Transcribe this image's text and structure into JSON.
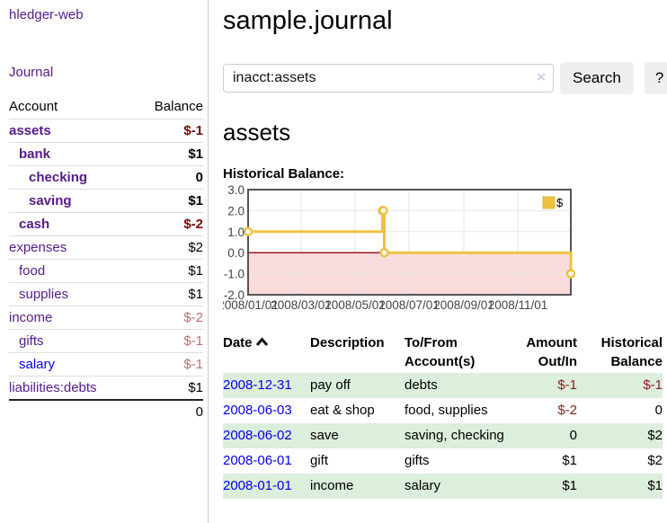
{
  "sidebar": {
    "brand": "hledger-web",
    "journal_link": "Journal",
    "accounts_table": {
      "col_account": "Account",
      "col_balance": "Balance",
      "rows": [
        {
          "label": "assets",
          "balance": "$-1",
          "indent": 1,
          "bold": true,
          "link_color": "purple",
          "balance_color": "darkred"
        },
        {
          "label": "bank",
          "balance": "$1",
          "indent": 2,
          "bold": true,
          "link_color": "purple",
          "balance_color": "black"
        },
        {
          "label": "checking",
          "balance": "0",
          "indent": 3,
          "bold": true,
          "link_color": "purple",
          "balance_color": "black"
        },
        {
          "label": "saving",
          "balance": "$1",
          "indent": 3,
          "bold": true,
          "link_color": "purple",
          "balance_color": "black"
        },
        {
          "label": "cash",
          "balance": "$-2",
          "indent": 2,
          "bold": true,
          "link_color": "purple",
          "balance_color": "darkred"
        },
        {
          "label": "expenses",
          "balance": "$2",
          "indent": 1,
          "bold": false,
          "link_color": "purple",
          "balance_color": "black"
        },
        {
          "label": "food",
          "balance": "$1",
          "indent": 2,
          "bold": false,
          "link_color": "purple",
          "balance_color": "black"
        },
        {
          "label": "supplies",
          "balance": "$1",
          "indent": 2,
          "bold": false,
          "link_color": "purple",
          "balance_color": "black"
        },
        {
          "label": "income",
          "balance": "$-2",
          "indent": 1,
          "bold": false,
          "link_color": "purple",
          "balance_color": "lightred"
        },
        {
          "label": "gifts",
          "balance": "$-1",
          "indent": 2,
          "bold": false,
          "link_color": "purple",
          "balance_color": "lightred"
        },
        {
          "label": "salary",
          "balance": "$-1",
          "indent": 2,
          "bold": false,
          "link_color": "blue",
          "balance_color": "lightred"
        },
        {
          "label": "liabilities:debts",
          "balance": "$1",
          "indent": 1,
          "bold": false,
          "link_color": "purple",
          "balance_color": "black"
        }
      ],
      "total": "0"
    }
  },
  "main": {
    "title": "sample.journal",
    "search": {
      "value": "inacct:assets",
      "clear_icon": "×",
      "button_label": "Search",
      "help_label": "?"
    },
    "account_heading": "assets",
    "chart_label": "Historical Balance:"
  },
  "chart_data": {
    "type": "line",
    "step": true,
    "title": "Historical Balance:",
    "legend": {
      "label": "$",
      "position": "top-right"
    },
    "series": [
      {
        "name": "$",
        "color": "#edc240",
        "points": [
          {
            "date": "2008-01-01",
            "day": 0,
            "value": 1
          },
          {
            "date": "2008-06-01",
            "day": 152,
            "value": 2
          },
          {
            "date": "2008-06-02",
            "day": 153,
            "value": 2
          },
          {
            "date": "2008-06-03",
            "day": 154,
            "value": 0
          },
          {
            "date": "2008-12-31",
            "day": 365,
            "value": -1
          }
        ]
      }
    ],
    "ylim": [
      -2,
      3
    ],
    "yticks": [
      {
        "label": "3.0",
        "value": 3
      },
      {
        "label": "2.0",
        "value": 2
      },
      {
        "label": "1.0",
        "value": 1
      },
      {
        "label": "0.0",
        "value": 0
      },
      {
        "label": "-1.0",
        "value": -1
      },
      {
        "label": "-2.0",
        "value": -2
      }
    ],
    "xticks": [
      {
        "label": "2008/01/01",
        "day": 0
      },
      {
        "label": "2008/03/01",
        "day": 60
      },
      {
        "label": "2008/05/01",
        "day": 121
      },
      {
        "label": "2008/07/01",
        "day": 182
      },
      {
        "label": "2008/09/01",
        "day": 244
      },
      {
        "label": "2008/11/01",
        "day": 305
      }
    ],
    "xrange_days": [
      0,
      365
    ],
    "grid": true,
    "colors": {
      "line": "#edc240",
      "marker_fill": "#ffffff",
      "negative_region": "#fbdcdc",
      "zero_line": "#8b0000",
      "gridline": "#e6e6e6",
      "border": "#545454",
      "tick_text": "#444444"
    }
  },
  "register_table": {
    "headers": {
      "date": "Date",
      "description": "Description",
      "accounts_line1": "To/From",
      "accounts_line2": "Account(s)",
      "amount_line1": "Amount",
      "amount_line2": "Out/In",
      "balance_line1": "Historical",
      "balance_line2": "Balance"
    },
    "rows": [
      {
        "date": "2008-12-31",
        "description": "pay off",
        "accounts": "debts",
        "amount": "$-1",
        "amount_neg": true,
        "balance": "$-1",
        "balance_neg": true
      },
      {
        "date": "2008-06-03",
        "description": "eat & shop",
        "accounts": "food, supplies",
        "amount": "$-2",
        "amount_neg": true,
        "balance": "0",
        "balance_neg": false
      },
      {
        "date": "2008-06-02",
        "description": "save",
        "accounts": "saving, checking",
        "amount": "0",
        "amount_neg": false,
        "balance": "$2",
        "balance_neg": false
      },
      {
        "date": "2008-06-01",
        "description": "gift",
        "accounts": "gifts",
        "amount": "$1",
        "amount_neg": false,
        "balance": "$2",
        "balance_neg": false
      },
      {
        "date": "2008-01-01",
        "description": "income",
        "accounts": "salary",
        "amount": "$1",
        "amount_neg": false,
        "balance": "$1",
        "balance_neg": false
      }
    ]
  }
}
